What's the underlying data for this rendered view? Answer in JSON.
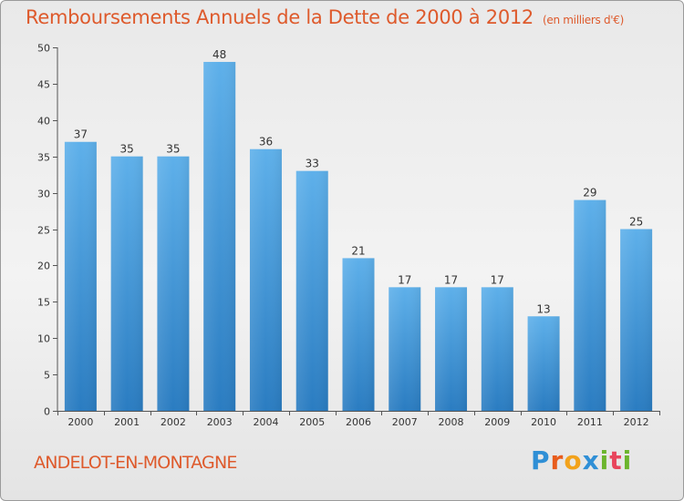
{
  "header": {
    "title": "Remboursements Annuels de la Dette de 2000 à 2012",
    "unit": "(en milliers d'€)"
  },
  "footer": {
    "city": "ANDELOT-EN-MONTAGNE",
    "logo_letters": [
      "P",
      "r",
      "o",
      "x",
      "i",
      "t",
      "i"
    ]
  },
  "colors": {
    "title": "#de5a2c",
    "bar_top": "#5eb0ea",
    "bar_bottom": "#2a7cc1",
    "logo": [
      "#2f8fd6",
      "#e85c1c",
      "#f2a21b",
      "#2f8fd6",
      "#6cb52d",
      "#e8455c",
      "#6cb52d"
    ]
  },
  "chart_data": {
    "type": "bar",
    "categories": [
      "2000",
      "2001",
      "2002",
      "2003",
      "2004",
      "2005",
      "2006",
      "2007",
      "2008",
      "2009",
      "2010",
      "2011",
      "2012"
    ],
    "values": [
      37,
      35,
      35,
      48,
      36,
      33,
      21,
      17,
      17,
      17,
      13,
      29,
      25
    ],
    "title": "Remboursements Annuels de la Dette de 2000 à 2012",
    "xlabel": "",
    "ylabel": "",
    "ylim": [
      0,
      50
    ],
    "yticks": [
      0,
      5,
      10,
      15,
      20,
      25,
      30,
      35,
      40,
      45,
      50
    ],
    "grid": false,
    "data_labels": true
  }
}
